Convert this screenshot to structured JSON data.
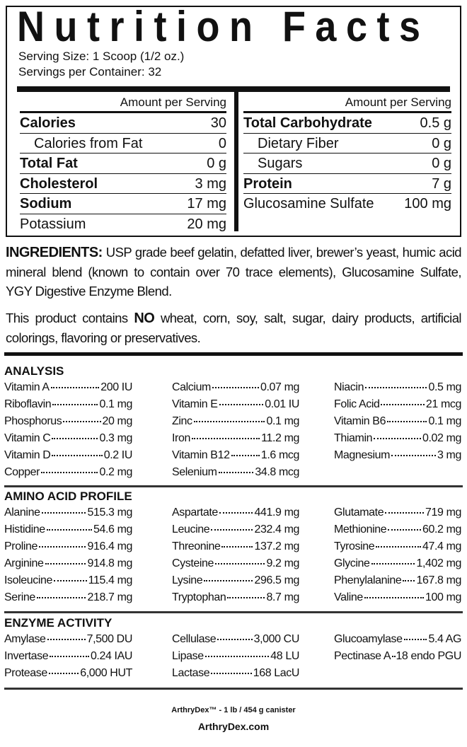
{
  "label": {
    "title": "Nutrition Facts",
    "serving_size": "Serving Size: 1 Scoop (1/2 oz.)",
    "servings_per_container": "Servings per Container: 32",
    "amount_per_serving": "Amount per Serving",
    "left": [
      {
        "name": "Calories",
        "value": "30",
        "style": "b"
      },
      {
        "name": "Calories from Fat",
        "value": "0",
        "style": "ind"
      },
      {
        "name": "Total Fat",
        "value": "0 g",
        "style": "b"
      },
      {
        "name": "Cholesterol",
        "value": "3 mg",
        "style": "b"
      },
      {
        "name": "Sodium",
        "value": "17 mg",
        "style": "b"
      },
      {
        "name": "Potassium",
        "value": "20 mg",
        "style": ""
      }
    ],
    "right": [
      {
        "name": "Total Carbohydrate",
        "value": "0.5 g",
        "style": "b"
      },
      {
        "name": "Dietary Fiber",
        "value": "0 g",
        "style": "ind"
      },
      {
        "name": "Sugars",
        "value": "0 g",
        "style": "ind"
      },
      {
        "name": "Protein",
        "value": "7 g",
        "style": "b"
      },
      {
        "name": "Glucosamine Sulfate",
        "value": "100 mg",
        "style": ""
      }
    ]
  },
  "ingredients": {
    "heading": "INGREDIENTS:",
    "text": " USP grade beef gelatin, defatted liver, brewer’s yeast, humic acid mineral blend (known to contain over 70 trace elements), Glucosamine Sulfate, YGY Digestive Enzyme Blend."
  },
  "free_from": {
    "before": "This product contains ",
    "emphasis": "NO",
    "after": " wheat, corn, soy, salt, sugar, dairy products, artificial colorings, flavoring or preservatives."
  },
  "sections": [
    {
      "title": "ANALYSIS",
      "columns": [
        [
          [
            "Vitamin A",
            "200 IU"
          ],
          [
            "Riboflavin",
            "0.1 mg"
          ],
          [
            "Phosphorus",
            "20 mg"
          ],
          [
            "Vitamin C",
            "0.3 mg"
          ],
          [
            "Vitamin D",
            "0.2 IU"
          ],
          [
            "Copper",
            "0.2 mg"
          ]
        ],
        [
          [
            "Calcium",
            "0.07 mg"
          ],
          [
            "Vitamin E",
            "0.01 IU"
          ],
          [
            "Zinc",
            "0.1 mg"
          ],
          [
            "Iron",
            "11.2 mg"
          ],
          [
            "Vitamin B12",
            "1.6 mcg"
          ],
          [
            "Selenium",
            "34.8 mcg"
          ]
        ],
        [
          [
            "Niacin",
            "0.5 mg"
          ],
          [
            "Folic Acid",
            "21 mcg"
          ],
          [
            "Vitamin B6",
            "0.1 mg"
          ],
          [
            "Thiamin",
            "0.02 mg"
          ],
          [
            "Magnesium",
            "3 mg"
          ]
        ]
      ]
    },
    {
      "title": "AMINO ACID PROFILE",
      "columns": [
        [
          [
            "Alanine",
            "515.3 mg"
          ],
          [
            "Histidine",
            "54.6 mg"
          ],
          [
            "Proline",
            "916.4 mg"
          ],
          [
            "Arginine",
            "914.8 mg"
          ],
          [
            "Isoleucine",
            "115.4 mg"
          ],
          [
            "Serine",
            "218.7 mg"
          ]
        ],
        [
          [
            "Aspartate",
            "441.9 mg"
          ],
          [
            "Leucine",
            "232.4 mg"
          ],
          [
            "Threonine",
            "137.2 mg"
          ],
          [
            "Cysteine",
            "9.2 mg"
          ],
          [
            "Lysine",
            "296.5 mg"
          ],
          [
            "Tryptophan",
            "8.7 mg"
          ]
        ],
        [
          [
            "Glutamate",
            "719 mg"
          ],
          [
            "Methionine",
            "60.2 mg"
          ],
          [
            "Tyrosine",
            "47.4 mg"
          ],
          [
            "Glycine",
            "1,402 mg"
          ],
          [
            "Phenylalanine",
            "167.8 mg"
          ],
          [
            "Valine",
            "100 mg"
          ]
        ]
      ]
    },
    {
      "title": "ENZYME ACTIVITY",
      "columns": [
        [
          [
            "Amylase",
            "7,500 DU"
          ],
          [
            "Invertase",
            "0.24 IAU"
          ],
          [
            "Protease",
            "6,000 HUT"
          ]
        ],
        [
          [
            "Cellulase",
            "3,000 CU"
          ],
          [
            "Lipase",
            "48 LU"
          ],
          [
            "Lactase",
            "168 LacU"
          ]
        ],
        [
          [
            "Glucoamylase",
            "5.4 AG"
          ],
          [
            "Pectinase A",
            "18 endo PGU"
          ]
        ]
      ]
    }
  ],
  "footer": {
    "product": "ArthryDex™ - 1 lb / 454 g canister",
    "website": "ArthryDex.com"
  }
}
